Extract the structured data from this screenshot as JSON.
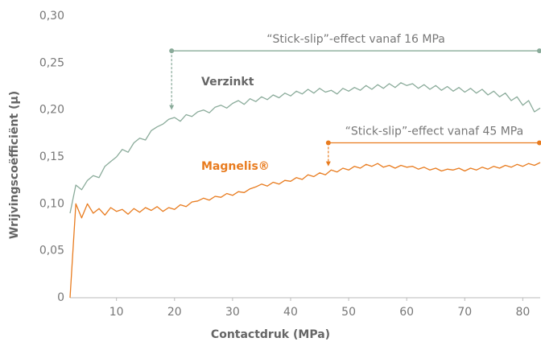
{
  "chart_data": {
    "type": "line",
    "xlabel": "Contactdruk (MPa)",
    "ylabel": "Wrijvingscoëfficiënt (µ)",
    "xlim": [
      2,
      83
    ],
    "ylim": [
      0,
      0.3
    ],
    "xticks": [
      10,
      20,
      30,
      40,
      50,
      60,
      70,
      80
    ],
    "yticks": [
      0,
      {
        "value": 0.05,
        "label": "0,05"
      },
      {
        "value": 0.1,
        "label": "0,10"
      },
      {
        "value": 0.15,
        "label": "0,15"
      },
      {
        "value": 0.2,
        "label": "0,20"
      },
      {
        "value": 0.25,
        "label": "0,25"
      },
      {
        "value": 0.3,
        "label": "0,30"
      }
    ],
    "grid": false,
    "x": [
      2,
      3,
      4,
      5,
      6,
      7,
      8,
      9,
      10,
      11,
      12,
      13,
      14,
      15,
      16,
      17,
      18,
      19,
      20,
      21,
      22,
      23,
      24,
      25,
      26,
      27,
      28,
      29,
      30,
      31,
      32,
      33,
      34,
      35,
      36,
      37,
      38,
      39,
      40,
      41,
      42,
      43,
      44,
      45,
      46,
      47,
      48,
      49,
      50,
      51,
      52,
      53,
      54,
      55,
      56,
      57,
      58,
      59,
      60,
      61,
      62,
      63,
      64,
      65,
      66,
      67,
      68,
      69,
      70,
      71,
      72,
      73,
      74,
      75,
      76,
      77,
      78,
      79,
      80,
      81,
      82,
      83
    ],
    "series": [
      {
        "name": "Verzinkt",
        "color": "#8aab9a",
        "values": [
          0.09,
          0.12,
          0.115,
          0.125,
          0.13,
          0.128,
          0.14,
          0.145,
          0.15,
          0.158,
          0.155,
          0.165,
          0.17,
          0.168,
          0.178,
          0.182,
          0.185,
          0.19,
          0.192,
          0.188,
          0.195,
          0.193,
          0.198,
          0.2,
          0.197,
          0.203,
          0.205,
          0.202,
          0.207,
          0.21,
          0.206,
          0.212,
          0.209,
          0.214,
          0.211,
          0.216,
          0.213,
          0.218,
          0.215,
          0.22,
          0.217,
          0.222,
          0.218,
          0.223,
          0.219,
          0.221,
          0.217,
          0.223,
          0.22,
          0.224,
          0.221,
          0.226,
          0.222,
          0.227,
          0.223,
          0.228,
          0.224,
          0.229,
          0.226,
          0.228,
          0.223,
          0.227,
          0.222,
          0.226,
          0.221,
          0.225,
          0.22,
          0.224,
          0.219,
          0.223,
          0.218,
          0.222,
          0.216,
          0.22,
          0.214,
          0.218,
          0.21,
          0.214,
          0.205,
          0.21,
          0.198,
          0.202
        ]
      },
      {
        "name": "Magnelis®",
        "color": "#e87b1e",
        "values": [
          0.0,
          0.1,
          0.085,
          0.1,
          0.09,
          0.095,
          0.088,
          0.096,
          0.092,
          0.094,
          0.089,
          0.095,
          0.091,
          0.096,
          0.093,
          0.097,
          0.092,
          0.096,
          0.094,
          0.099,
          0.097,
          0.102,
          0.103,
          0.106,
          0.104,
          0.108,
          0.107,
          0.111,
          0.109,
          0.113,
          0.112,
          0.116,
          0.118,
          0.121,
          0.119,
          0.123,
          0.121,
          0.125,
          0.124,
          0.128,
          0.126,
          0.131,
          0.129,
          0.133,
          0.131,
          0.136,
          0.134,
          0.138,
          0.136,
          0.14,
          0.138,
          0.142,
          0.14,
          0.143,
          0.139,
          0.141,
          0.138,
          0.141,
          0.139,
          0.14,
          0.137,
          0.139,
          0.136,
          0.138,
          0.135,
          0.137,
          0.136,
          0.138,
          0.135,
          0.138,
          0.136,
          0.139,
          0.137,
          0.14,
          0.138,
          0.141,
          0.139,
          0.142,
          0.14,
          0.143,
          0.141,
          0.144
        ]
      }
    ],
    "annotations": [
      {
        "text": "“Stick-slip”-effect vanaf 16 MPa",
        "x": 19.5,
        "y": 0.263,
        "y_end": 0.2,
        "color": "#8aab9a"
      },
      {
        "text": "“Stick-slip”-effect vanaf 45 MPa",
        "x": 46.5,
        "y": 0.165,
        "y_end": 0.14,
        "color": "#e87b1e"
      }
    ]
  }
}
